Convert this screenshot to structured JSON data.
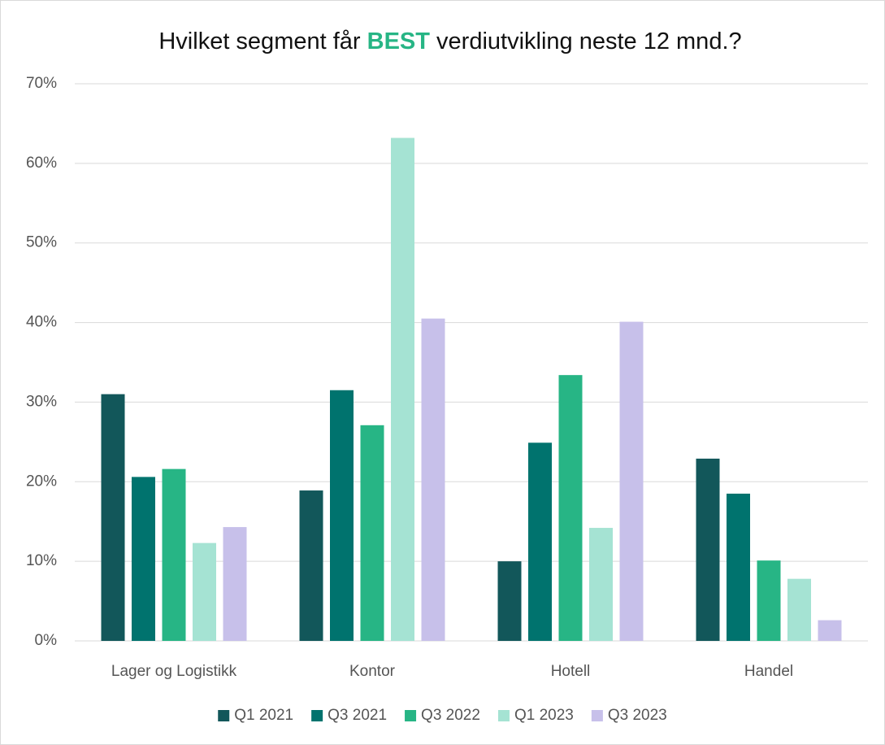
{
  "chart_data": {
    "type": "bar",
    "title": [
      "Hvilket segment får",
      "BEST",
      "verdiutvikling neste 12 mnd.?"
    ],
    "title_highlight_color": "#27b585",
    "categories": [
      "Lager og Logistikk",
      "Kontor",
      "Hotell",
      "Handel"
    ],
    "series": [
      {
        "name": "Q1 2021",
        "color": "#12575a",
        "values": [
          31.0,
          18.9,
          10.0,
          22.9
        ]
      },
      {
        "name": "Q3 2021",
        "color": "#00736e",
        "values": [
          20.6,
          31.5,
          24.9,
          18.5
        ]
      },
      {
        "name": "Q3 2022",
        "color": "#27b585",
        "values": [
          21.6,
          27.1,
          33.4,
          10.1
        ]
      },
      {
        "name": "Q1 2023",
        "color": "#a5e3d3",
        "values": [
          12.3,
          63.2,
          14.2,
          7.8
        ]
      },
      {
        "name": "Q3 2023",
        "color": "#c7c0ea",
        "values": [
          14.3,
          40.5,
          40.1,
          2.6
        ]
      }
    ],
    "ylim": [
      0,
      70
    ],
    "yticks": [
      {
        "value": 0,
        "label": "0%"
      },
      {
        "value": 10,
        "label": "10%"
      },
      {
        "value": 20,
        "label": "20%"
      },
      {
        "value": 30,
        "label": "30%"
      },
      {
        "value": 40,
        "label": "40%"
      },
      {
        "value": 50,
        "label": "50%"
      },
      {
        "value": 60,
        "label": "60%"
      },
      {
        "value": 70,
        "label": "70%"
      }
    ],
    "grid": true,
    "legend": "bottom"
  }
}
